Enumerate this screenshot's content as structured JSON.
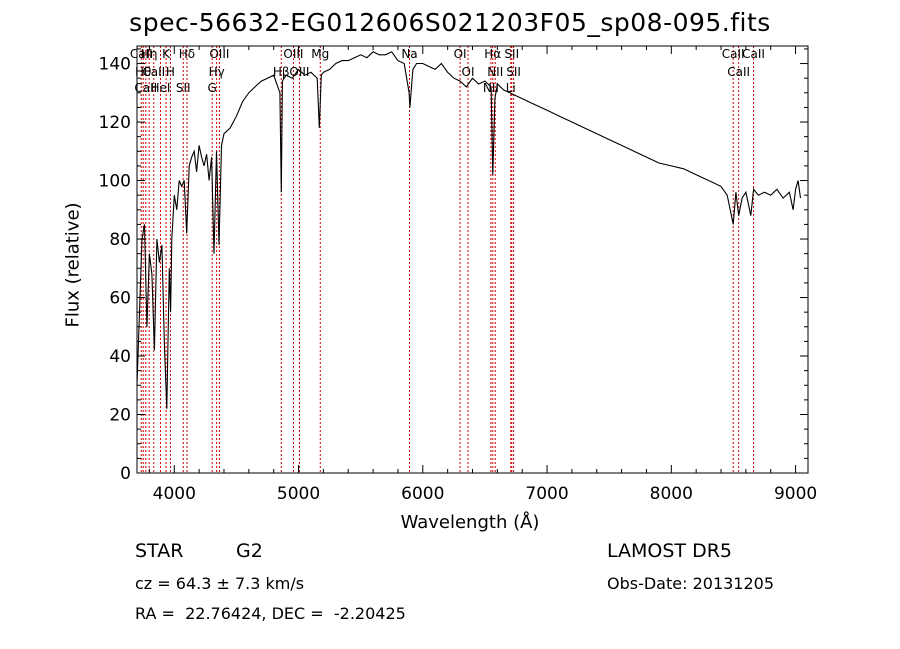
{
  "chart_data": {
    "type": "line",
    "title": "spec-56632-EG012606S021203F05_sp08-095.fits",
    "xlabel": "Wavelength (Å)",
    "ylabel": "Flux (relative)",
    "xlim": [
      3700,
      9100
    ],
    "ylim": [
      0,
      146
    ],
    "x_ticks": [
      4000,
      5000,
      6000,
      7000,
      8000,
      9000
    ],
    "y_ticks": [
      0,
      20,
      40,
      60,
      80,
      100,
      120,
      140
    ],
    "grid": false,
    "series": [
      {
        "color": "#000000",
        "x": [
          3700,
          3720,
          3740,
          3760,
          3780,
          3800,
          3820,
          3840,
          3860,
          3880,
          3900,
          3920,
          3940,
          3960,
          3970,
          3980,
          4000,
          4020,
          4040,
          4060,
          4080,
          4100,
          4120,
          4140,
          4160,
          4180,
          4200,
          4220,
          4240,
          4260,
          4280,
          4300,
          4320,
          4340,
          4360,
          4380,
          4400,
          4450,
          4500,
          4550,
          4600,
          4650,
          4700,
          4750,
          4800,
          4850,
          4861,
          4870,
          4900,
          4950,
          5000,
          5050,
          5100,
          5150,
          5167,
          5183,
          5200,
          5250,
          5300,
          5350,
          5400,
          5450,
          5500,
          5550,
          5600,
          5650,
          5700,
          5750,
          5800,
          5850,
          5890,
          5896,
          5920,
          5950,
          6000,
          6050,
          6100,
          6150,
          6200,
          6250,
          6300,
          6350,
          6400,
          6450,
          6500,
          6550,
          6563,
          6580,
          6600,
          6650,
          6700,
          6750,
          6800,
          6850,
          6900,
          6950,
          7000,
          7100,
          7200,
          7300,
          7400,
          7500,
          7600,
          7700,
          7800,
          7900,
          8000,
          8100,
          8200,
          8300,
          8400,
          8450,
          8498,
          8520,
          8542,
          8570,
          8600,
          8640,
          8662,
          8700,
          8750,
          8800,
          8850,
          8900,
          8950,
          8980,
          9000,
          9020,
          9040
        ],
        "y": [
          30,
          55,
          80,
          85,
          50,
          75,
          68,
          42,
          80,
          72,
          78,
          45,
          22,
          70,
          55,
          80,
          95,
          90,
          100,
          98,
          100,
          82,
          105,
          108,
          110,
          103,
          112,
          108,
          105,
          109,
          100,
          108,
          75,
          110,
          78,
          112,
          116,
          118,
          122,
          127,
          130,
          132,
          134,
          135,
          136,
          130,
          96,
          134,
          136,
          135,
          138,
          136,
          137,
          135,
          118,
          136,
          137,
          138,
          140,
          141,
          141,
          142,
          143,
          142,
          144,
          143,
          143,
          144,
          141,
          140,
          130,
          125,
          138,
          140,
          140,
          139,
          138,
          140,
          137,
          135,
          134,
          132,
          135,
          133,
          134,
          132,
          102,
          128,
          133,
          131,
          130,
          129,
          128,
          127,
          126,
          125,
          124,
          122,
          120,
          118,
          116,
          114,
          112,
          110,
          108,
          106,
          105,
          104,
          102,
          100,
          98,
          95,
          85,
          96,
          88,
          94,
          96,
          88,
          97,
          95,
          96,
          95,
          97,
          94,
          96,
          90,
          97,
          100,
          94
        ]
      }
    ],
    "line_markers": [
      {
        "label": "CaII",
        "x": 3734
      },
      {
        "label": "Hθ",
        "x": 3750
      },
      {
        "label": "CaII",
        "x": 3771
      },
      {
        "label": "Hη",
        "x": 3798
      },
      {
        "label": "CaII",
        "x": 3835
      },
      {
        "label": "HeI",
        "x": 3889
      },
      {
        "label": "K",
        "x": 3934
      },
      {
        "label": "H",
        "x": 3969
      },
      {
        "label": "Hδ",
        "x": 4102
      },
      {
        "label": "SII",
        "x": 4072
      },
      {
        "label": "OIII",
        "x": 4363
      },
      {
        "label": "Hγ",
        "x": 4341
      },
      {
        "label": "G",
        "x": 4305
      },
      {
        "label": "OIII",
        "x": 4959
      },
      {
        "label": "OIII",
        "x": 5007
      },
      {
        "label": "Hβ",
        "x": 4861
      },
      {
        "label": "Mg",
        "x": 5175
      },
      {
        "label": "Na",
        "x": 5893
      },
      {
        "label": "OI",
        "x": 6300
      },
      {
        "label": "OI",
        "x": 6364
      },
      {
        "label": "Hα",
        "x": 6563
      },
      {
        "label": "NII",
        "x": 6583
      },
      {
        "label": "NII",
        "x": 6548
      },
      {
        "label": "SII",
        "x": 6716
      },
      {
        "label": "Li",
        "x": 6708
      },
      {
        "label": "SII",
        "x": 6731
      },
      {
        "label": "CaII",
        "x": 8498
      },
      {
        "label": "CaII",
        "x": 8542
      },
      {
        "label": "CaII",
        "x": 8662
      }
    ]
  },
  "info": {
    "object_type": "STAR",
    "subclass": "G2",
    "survey": "LAMOST DR5",
    "cz": "cz = 64.3 ± 7.3 km/s",
    "obs_date": "Obs-Date: 20131205",
    "coords": "RA =  22.76424, DEC =  -2.20425"
  }
}
